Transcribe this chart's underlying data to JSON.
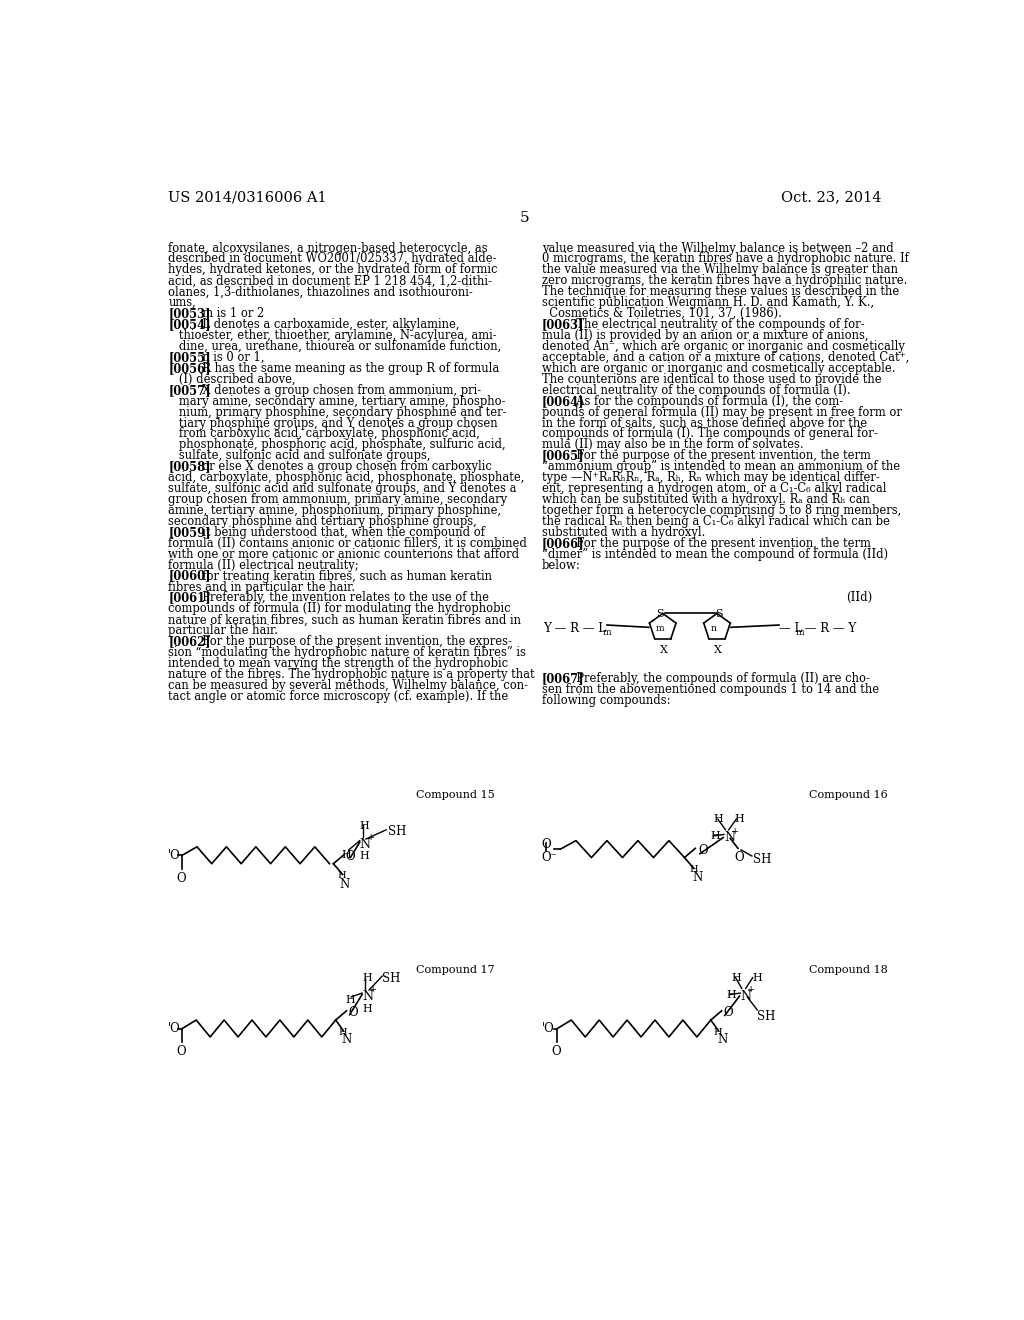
{
  "page_number": "5",
  "header_left": "US 2014/0316006 A1",
  "header_right": "Oct. 23, 2014",
  "background_color": "#ffffff",
  "left_col_lines": [
    "fonate, alcoxysilanes, a nitrogen-based heterocycle, as",
    "described in document WO2001/025337, hydrated alde-",
    "hydes, hydrated ketones, or the hydrated form of formic",
    "acid, as described in document EP 1 218 454, 1,2-dithi-",
    "olanes, 1,3-dithiolanes, thiazolines and isothiouroni-",
    "ums,",
    "[0053]  m is 1 or 2",
    "[0054]  L denotes a carboxamide, ester, alkylamine,",
    "   thioester, ether, thioether, arylamine, N-acylurea, ami-",
    "   dine, urea, urethane, thiourea or sulfonamide function,",
    "[0055]  n is 0 or 1,",
    "[0056]  R has the same meaning as the group R of formula",
    "   (I) described above,",
    "[0057]  X denotes a group chosen from ammonium, pri-",
    "   mary amine, secondary amine, tertiary amine, phospho-",
    "   nium, primary phosphine, secondary phosphine and ter-",
    "   tiary phosphine groups, and Y denotes a group chosen",
    "   from carboxylic acid, carboxylate, phosphonic acid,",
    "   phosphonate, phosphoric acid, phosphate, sulfuric acid,",
    "   sulfate, sulfonic acid and sulfonate groups,",
    "[0058]  or else X denotes a group chosen from carboxylic",
    "acid, carboxylate, phosphonic acid, phosphonate, phosphate,",
    "sulfate, sulfonic acid and sulfonate groups, and Y denotes a",
    "group chosen from ammonium, primary amine, secondary",
    "amine, tertiary amine, phosphonium, primary phosphine,",
    "secondary phosphine and tertiary phosphine groups,",
    "[0059]  it being understood that, when the compound of",
    "formula (II) contains anionic or cationic fillers, it is combined",
    "with one or more cationic or anionic counterions that afford",
    "formula (II) electrical neutrality;",
    "[0060]  for treating keratin fibres, such as human keratin",
    "fibres and in particular the hair.",
    "[0061]  Preferably, the invention relates to the use of the",
    "compounds of formula (II) for modulating the hydrophobic",
    "nature of keratin fibres, such as human keratin fibres and in",
    "particular the hair.",
    "[0062]  For the purpose of the present invention, the expres-",
    "sion “modulating the hydrophobic nature of keratin fibres” is",
    "intended to mean varying the strength of the hydrophobic",
    "nature of the fibres. The hydrophobic nature is a property that",
    "can be measured by several methods, Wilhelmy balance, con-",
    "tact angle or atomic force microscopy (cf. example). If the"
  ],
  "right_col_lines": [
    "value measured via the Wilhelmy balance is between –2 and",
    "0 micrograms, the keratin fibres have a hydrophobic nature. If",
    "the value measured via the Wilhelmy balance is greater than",
    "zero micrograms, the keratin fibres have a hydrophilic nature.",
    "The technique for measuring these values is described in the",
    "scientific publication Weigmann H. D. and Kamath, Y. K.,",
    "  Cosmetics & Toiletries, 101, 37, (1986).",
    "[0063]  The electrical neutrality of the compounds of for-",
    "mula (II) is provided by an anion or a mixture of anions,",
    "denoted An⁻, which are organic or inorganic and cosmetically",
    "acceptable, and a cation or a mixture of cations, denoted Cat⁺,",
    "which are organic or inorganic and cosmetically acceptable.",
    "The counterions are identical to those used to provide the",
    "electrical neutrality of the compounds of formula (I).",
    "[0064]  As for the compounds of formula (I), the com-",
    "pounds of general formula (II) may be present in free form or",
    "in the form of salts, such as those defined above for the",
    "compounds of formula (I). The compounds of general for-",
    "mula (II) may also be in the form of solvates.",
    "[0065]  For the purpose of the present invention, the term",
    "“ammonium group” is intended to mean an ammonium of the",
    "type —N⁺RₐRₕRₙ, Rₐ, Rₕ, Rₙ which may be identical differ-",
    "ent, representing a hydrogen atom, or a C₁-C₆ alkyl radical",
    "which can be substituted with a hydroxyl. Rₐ and Rₕ can",
    "together form a heterocycle comprising 5 to 8 ring members,",
    "the radical Rₙ then being a C₁-C₆ alkyl radical which can be",
    "substituted with a hydroxyl.",
    "[0066]  For the purpose of the present invention, the term",
    "“dimer” is intended to mean the compound of formula (IId)",
    "below:"
  ],
  "right_col_lower_lines": [
    "[0067]  Preferably, the compounds of formula (II) are cho-",
    "sen from the abovementioned compounds 1 to 14 and the",
    "following compounds:"
  ],
  "bold_tags": [
    "[0053]",
    "[0054]",
    "[0055]",
    "[0056]",
    "[0057]",
    "[0058]",
    "[0059]",
    "[0060]",
    "[0061]",
    "[0062]",
    "[0063]",
    "[0064]",
    "[0065]",
    "[0066]",
    "[0067]"
  ]
}
